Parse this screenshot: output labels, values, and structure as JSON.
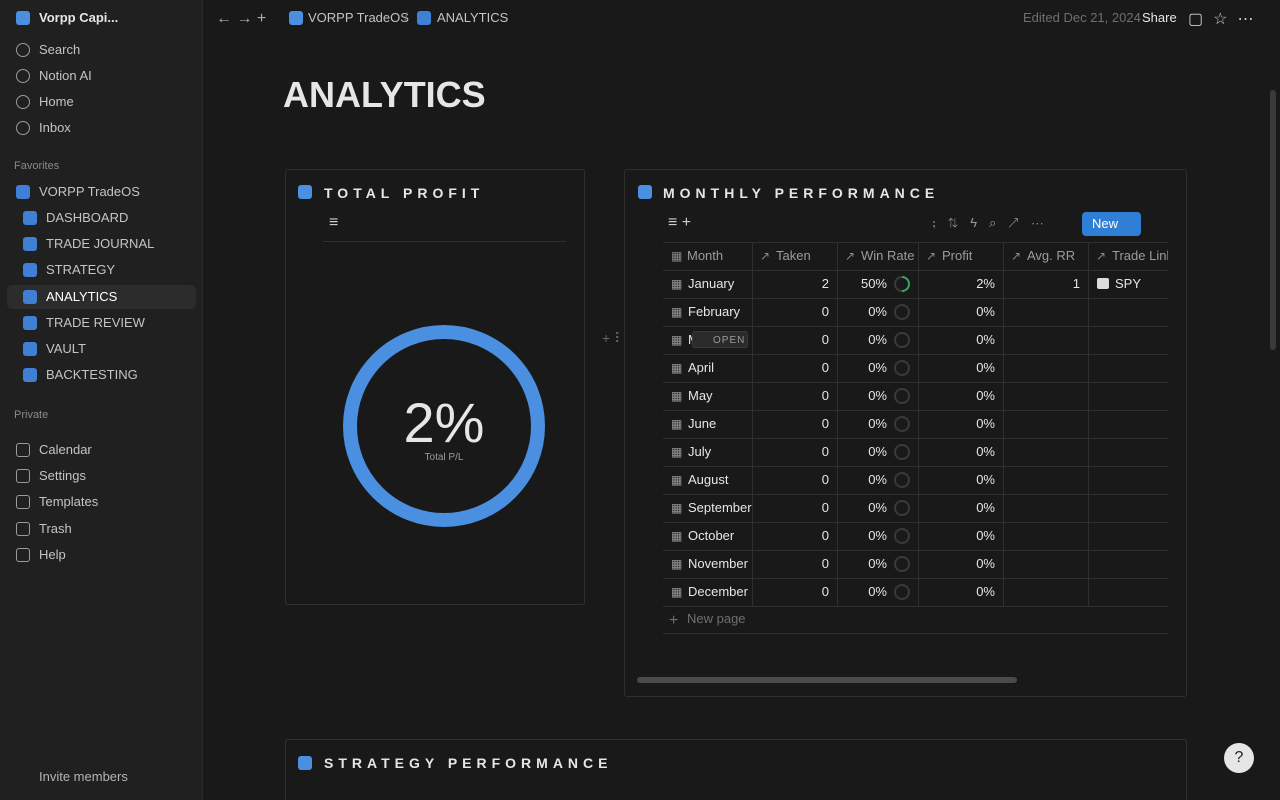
{
  "sidebar": {
    "workspace": "Vorpp Capi...",
    "nav": [
      "Search",
      "Notion AI",
      "Home",
      "Inbox"
    ],
    "favorites_label": "Favorites",
    "favorites": [
      "VORPP TradeOS",
      "DASHBOARD",
      "TRADE JOURNAL",
      "STRATEGY",
      "ANALYTICS",
      "TRADE REVIEW",
      "VAULT",
      "BACKTESTING"
    ],
    "private_label": "Private",
    "private": [
      "Calendar",
      "Settings",
      "Templates",
      "Trash",
      "Help"
    ],
    "invite": "Invite members"
  },
  "topbar": {
    "breadcrumb": [
      "VORPP TradeOS",
      "/",
      "ANALYTICS"
    ],
    "edited": "Edited Dec 21, 2024",
    "share": "Share"
  },
  "page": {
    "title": "ANALYTICS",
    "total_profit": {
      "heading": "TOTAL PROFIT",
      "value": "2%",
      "caption": "Total P/L"
    },
    "monthly": {
      "heading": "MONTHLY PERFORMANCE",
      "new_button": "New",
      "open_button": "OPEN",
      "columns": [
        "Month",
        "Taken",
        "Win Rate",
        "Profit",
        "Avg. RR",
        "Trade Link"
      ],
      "rows": [
        {
          "month": "January",
          "taken": "2",
          "win_rate": "50%",
          "profit": "2%",
          "avg_rr": "1",
          "trade_link": "SPY"
        },
        {
          "month": "February",
          "taken": "0",
          "win_rate": "0%",
          "profit": "0%"
        },
        {
          "month": "March",
          "taken": "0",
          "win_rate": "0%",
          "profit": "0%"
        },
        {
          "month": "April",
          "taken": "0",
          "win_rate": "0%",
          "profit": "0%"
        },
        {
          "month": "May",
          "taken": "0",
          "win_rate": "0%",
          "profit": "0%"
        },
        {
          "month": "June",
          "taken": "0",
          "win_rate": "0%",
          "profit": "0%"
        },
        {
          "month": "July",
          "taken": "0",
          "win_rate": "0%",
          "profit": "0%"
        },
        {
          "month": "August",
          "taken": "0",
          "win_rate": "0%",
          "profit": "0%"
        },
        {
          "month": "September",
          "taken": "0",
          "win_rate": "0%",
          "profit": "0%"
        },
        {
          "month": "October",
          "taken": "0",
          "win_rate": "0%",
          "profit": "0%"
        },
        {
          "month": "November",
          "taken": "0",
          "win_rate": "0%",
          "profit": "0%"
        },
        {
          "month": "December",
          "taken": "0",
          "win_rate": "0%",
          "profit": "0%"
        }
      ],
      "new_page": "New page"
    },
    "strategy": {
      "heading": "STRATEGY PERFORMANCE"
    }
  }
}
